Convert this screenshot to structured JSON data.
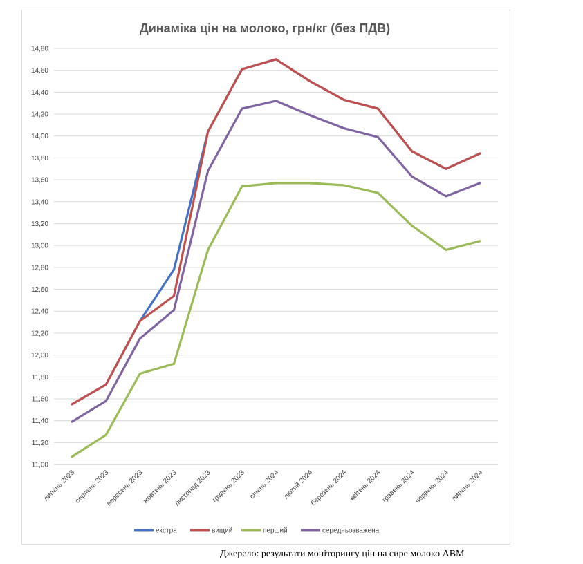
{
  "chart_data": {
    "type": "line",
    "title": "Динаміка цін на молоко, грн/кг (без ПДВ)",
    "xlabel": "",
    "ylabel": "",
    "categories": [
      "липень 2023",
      "серпень 2023",
      "вересень 2023",
      "жовтень 2023",
      "листопад 2023",
      "грудень 2023",
      "січень 2024",
      "лютий 2024",
      "березень 2024",
      "квітень 2024",
      "травень 2024",
      "червень 2024",
      "липень 2024"
    ],
    "y_ticks": [
      "11,00",
      "11,20",
      "11,40",
      "11,60",
      "11,80",
      "12,00",
      "12,20",
      "12,40",
      "12,60",
      "12,80",
      "13,00",
      "13,20",
      "13,40",
      "13,60",
      "13,80",
      "14,00",
      "14,20",
      "14,40",
      "14,60",
      "14,80"
    ],
    "ylim": [
      11.0,
      14.8
    ],
    "grid": true,
    "legend_position": "bottom",
    "series": [
      {
        "name": "екстра",
        "color": "#4472c4",
        "values": [
          11.55,
          11.73,
          12.31,
          12.78,
          14.04,
          14.61,
          14.7,
          14.5,
          14.33,
          14.25,
          13.86,
          13.7,
          13.84
        ]
      },
      {
        "name": "вищий",
        "color": "#c0504d",
        "values": [
          11.55,
          11.73,
          12.31,
          12.54,
          14.04,
          14.61,
          14.7,
          14.5,
          14.33,
          14.25,
          13.86,
          13.7,
          13.84
        ]
      },
      {
        "name": "перший",
        "color": "#9bbb59",
        "values": [
          11.07,
          11.27,
          11.83,
          11.92,
          12.96,
          13.54,
          13.57,
          13.57,
          13.55,
          13.48,
          13.18,
          12.96,
          13.04
        ]
      },
      {
        "name": "середньозважена",
        "color": "#8064a2",
        "values": [
          11.39,
          11.58,
          12.15,
          12.41,
          13.68,
          14.25,
          14.32,
          14.19,
          14.07,
          13.99,
          13.63,
          13.45,
          13.57
        ]
      }
    ]
  },
  "source_note": "Джерело: результати моніторингу цін на сире молоко АВМ"
}
